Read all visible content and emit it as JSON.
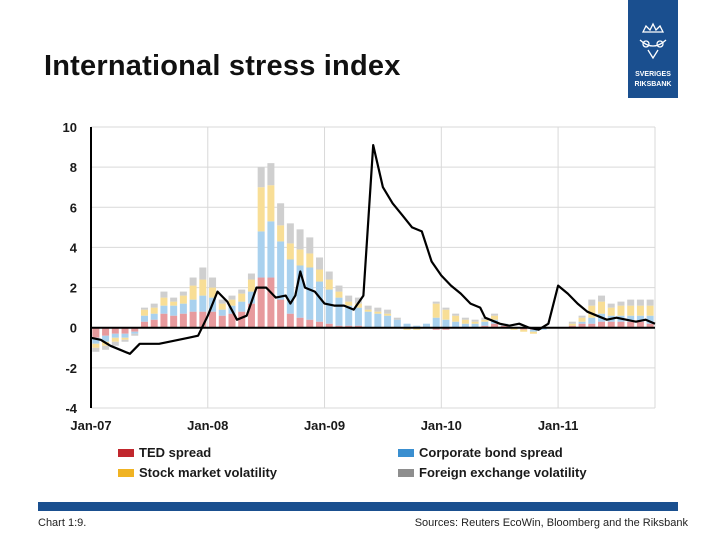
{
  "title": "International stress index",
  "logo_text": "SVERIGES RIKSBANK",
  "chart_label": "Chart 1:9.",
  "source_text": "Sources: Reuters EcoWin, Bloomberg and the Riksbank",
  "colors": {
    "ted": "#c1272d",
    "ted_light": "#e79a9d",
    "stock": "#f0b323",
    "stock_light": "#f8de96",
    "corp": "#3a8fd0",
    "corp_light": "#a9d1ee",
    "fx": "#8e8e8e",
    "fx_light": "#cfcfcf",
    "accent": "#1a4f8f"
  },
  "chart_data": {
    "type": "area",
    "title": "International stress index",
    "ylim": [
      -4,
      10
    ],
    "yticks": [
      "10",
      "8",
      "6",
      "4",
      "2",
      "0",
      "-2",
      "-4"
    ],
    "xlim": [
      2007.0,
      2011.83
    ],
    "xticks": [
      {
        "label": "Jan-07",
        "x": 2007.0
      },
      {
        "label": "Jan-08",
        "x": 2008.0
      },
      {
        "label": "Jan-09",
        "x": 2009.0
      },
      {
        "label": "Jan-10",
        "x": 2010.0
      },
      {
        "label": "Jan-11",
        "x": 2011.0
      }
    ],
    "grid": true,
    "legend_position": "bottom",
    "legend": [
      {
        "name": "TED spread",
        "color": "#c1272d"
      },
      {
        "name": "Corporate bond spread",
        "color": "#3a8fd0"
      },
      {
        "name": "Stock market volatility",
        "color": "#f0b323"
      },
      {
        "name": "Foreign exchange volatility",
        "color": "#8e8e8e"
      }
    ],
    "series": [
      {
        "name": "TED spread",
        "values": [
          -0.5,
          -0.4,
          -0.3,
          -0.3,
          -0.2,
          0.3,
          0.4,
          0.7,
          0.6,
          0.7,
          0.8,
          0.8,
          0.8,
          0.6,
          0.7,
          0.8,
          1.2,
          2.5,
          2.5,
          1.4,
          0.7,
          0.5,
          0.4,
          0.3,
          0.2,
          0.1,
          0.1,
          0.1,
          0.0,
          0.0,
          0.0,
          0.0,
          0.0,
          0.0,
          0.0,
          -0.1,
          -0.1,
          0.0,
          0.0,
          0.0,
          0.1,
          0.2,
          0.1,
          0.0,
          -0.1,
          -0.1,
          0.0,
          0.0,
          0.0,
          0.1,
          0.2,
          0.2,
          0.3,
          0.3,
          0.3,
          0.3,
          0.3,
          0.2
        ]
      },
      {
        "name": "Corporate bond spread",
        "values": [
          -0.3,
          -0.3,
          -0.2,
          -0.2,
          -0.1,
          0.3,
          0.3,
          0.4,
          0.5,
          0.5,
          0.6,
          0.8,
          0.7,
          0.3,
          0.4,
          0.5,
          0.6,
          2.3,
          2.8,
          2.9,
          2.7,
          2.6,
          2.6,
          2.0,
          1.7,
          1.4,
          1.0,
          0.9,
          0.8,
          0.7,
          0.6,
          0.4,
          0.2,
          0.1,
          0.2,
          0.5,
          0.4,
          0.3,
          0.2,
          0.2,
          0.2,
          0.2,
          0.1,
          0.0,
          0.0,
          -0.1,
          -0.1,
          0.0,
          0.0,
          0.0,
          0.1,
          0.3,
          0.4,
          0.3,
          0.3,
          0.3,
          0.3,
          0.4
        ]
      },
      {
        "name": "Stock market volatility",
        "values": [
          -0.2,
          -0.2,
          -0.2,
          -0.1,
          0.0,
          0.3,
          0.3,
          0.4,
          0.2,
          0.4,
          0.7,
          0.8,
          0.5,
          0.3,
          0.3,
          0.4,
          0.6,
          2.2,
          1.8,
          0.8,
          0.8,
          0.8,
          0.7,
          0.6,
          0.5,
          0.3,
          0.2,
          0.2,
          0.1,
          0.1,
          0.1,
          0.0,
          -0.1,
          -0.1,
          0.0,
          0.7,
          0.5,
          0.3,
          0.2,
          0.1,
          0.1,
          0.2,
          0.0,
          -0.1,
          -0.1,
          -0.1,
          0.0,
          0.0,
          0.0,
          0.1,
          0.2,
          0.6,
          0.6,
          0.4,
          0.5,
          0.5,
          0.5,
          0.5
        ]
      },
      {
        "name": "Foreign exchange volatility",
        "values": [
          -0.2,
          -0.2,
          -0.2,
          -0.1,
          -0.1,
          0.1,
          0.2,
          0.3,
          0.2,
          0.2,
          0.4,
          0.6,
          0.5,
          0.2,
          0.2,
          0.2,
          0.3,
          1.0,
          1.1,
          1.1,
          1.0,
          1.0,
          0.8,
          0.6,
          0.4,
          0.3,
          0.3,
          0.3,
          0.2,
          0.2,
          0.2,
          0.1,
          0.0,
          0.0,
          0.0,
          0.1,
          0.1,
          0.1,
          0.1,
          0.1,
          0.1,
          0.1,
          0.0,
          0.0,
          0.0,
          0.0,
          0.0,
          0.0,
          0.0,
          0.1,
          0.1,
          0.3,
          0.3,
          0.2,
          0.2,
          0.3,
          0.3,
          0.3
        ]
      }
    ],
    "total": {
      "name": "Index",
      "x": [
        2007.0,
        2007.083,
        2007.167,
        2007.25,
        2007.333,
        2007.417,
        2007.5,
        2007.583,
        2007.667,
        2007.75,
        2007.833,
        2007.917,
        2008.0,
        2008.083,
        2008.167,
        2008.25,
        2008.333,
        2008.417,
        2008.5,
        2008.583,
        2008.667,
        2008.708,
        2008.75,
        2008.792,
        2008.833,
        2008.917,
        2009.0,
        2009.083,
        2009.167,
        2009.25,
        2009.333,
        2009.417,
        2009.5,
        2009.583,
        2009.667,
        2009.75,
        2009.833,
        2009.917,
        2010.0,
        2010.083,
        2010.167,
        2010.25,
        2010.333,
        2010.375,
        2010.417,
        2010.5,
        2010.583,
        2010.667,
        2010.75,
        2010.833,
        2010.917,
        2011.0,
        2011.083,
        2011.167,
        2011.25,
        2011.333,
        2011.417,
        2011.5,
        2011.583,
        2011.667,
        2011.75,
        2011.83
      ],
      "y": [
        -0.5,
        -0.6,
        -0.9,
        -1.1,
        -1.3,
        -0.8,
        -0.8,
        -0.8,
        -0.7,
        -0.6,
        -0.5,
        -0.4,
        0.6,
        1.8,
        1.3,
        0.4,
        0.6,
        2.0,
        2.0,
        1.5,
        1.6,
        1.2,
        1.6,
        2.8,
        2.0,
        1.8,
        1.2,
        1.1,
        1.1,
        0.9,
        1.6,
        9.1,
        7.0,
        6.2,
        5.6,
        5.0,
        4.8,
        3.3,
        2.6,
        2.1,
        1.7,
        1.2,
        1.0,
        0.5,
        0.4,
        0.2,
        0.1,
        0.2,
        0.0,
        -0.1,
        0.2,
        2.1,
        1.7,
        1.2,
        0.8,
        0.6,
        0.4,
        0.5,
        0.4,
        0.3,
        0.4,
        0.2
      ]
    }
  }
}
